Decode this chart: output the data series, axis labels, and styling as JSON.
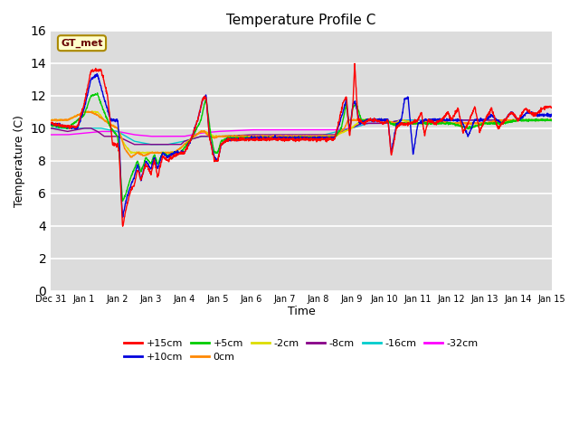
{
  "title": "Temperature Profile C",
  "xlabel": "Time",
  "ylabel": "Temperature (C)",
  "ylim": [
    0,
    16
  ],
  "yticks": [
    0,
    2,
    4,
    6,
    8,
    10,
    12,
    14,
    16
  ],
  "bg_color": "#dcdcdc",
  "series_colors": {
    "+15cm": "#ff0000",
    "+10cm": "#0000dd",
    "+5cm": "#00cc00",
    "0cm": "#ff8800",
    "-2cm": "#dddd00",
    "-8cm": "#880088",
    "-16cm": "#00cccc",
    "-32cm": "#ff00ff"
  },
  "series_linewidth": 1.0,
  "xtick_labels": [
    "Dec 31",
    "Jan 1",
    "Jan 2",
    "Jan 3",
    "Jan 4",
    "Jan 5",
    "Jan 6",
    "Jan 7",
    "Jan 8",
    "Jan 9",
    "Jan 10",
    "Jan 11",
    "Jan 12",
    "Jan 13",
    "Jan 14",
    "Jan 15"
  ],
  "gt_met_facecolor": "#ffffcc",
  "gt_met_edgecolor": "#aa8800",
  "gt_met_textcolor": "#660000"
}
